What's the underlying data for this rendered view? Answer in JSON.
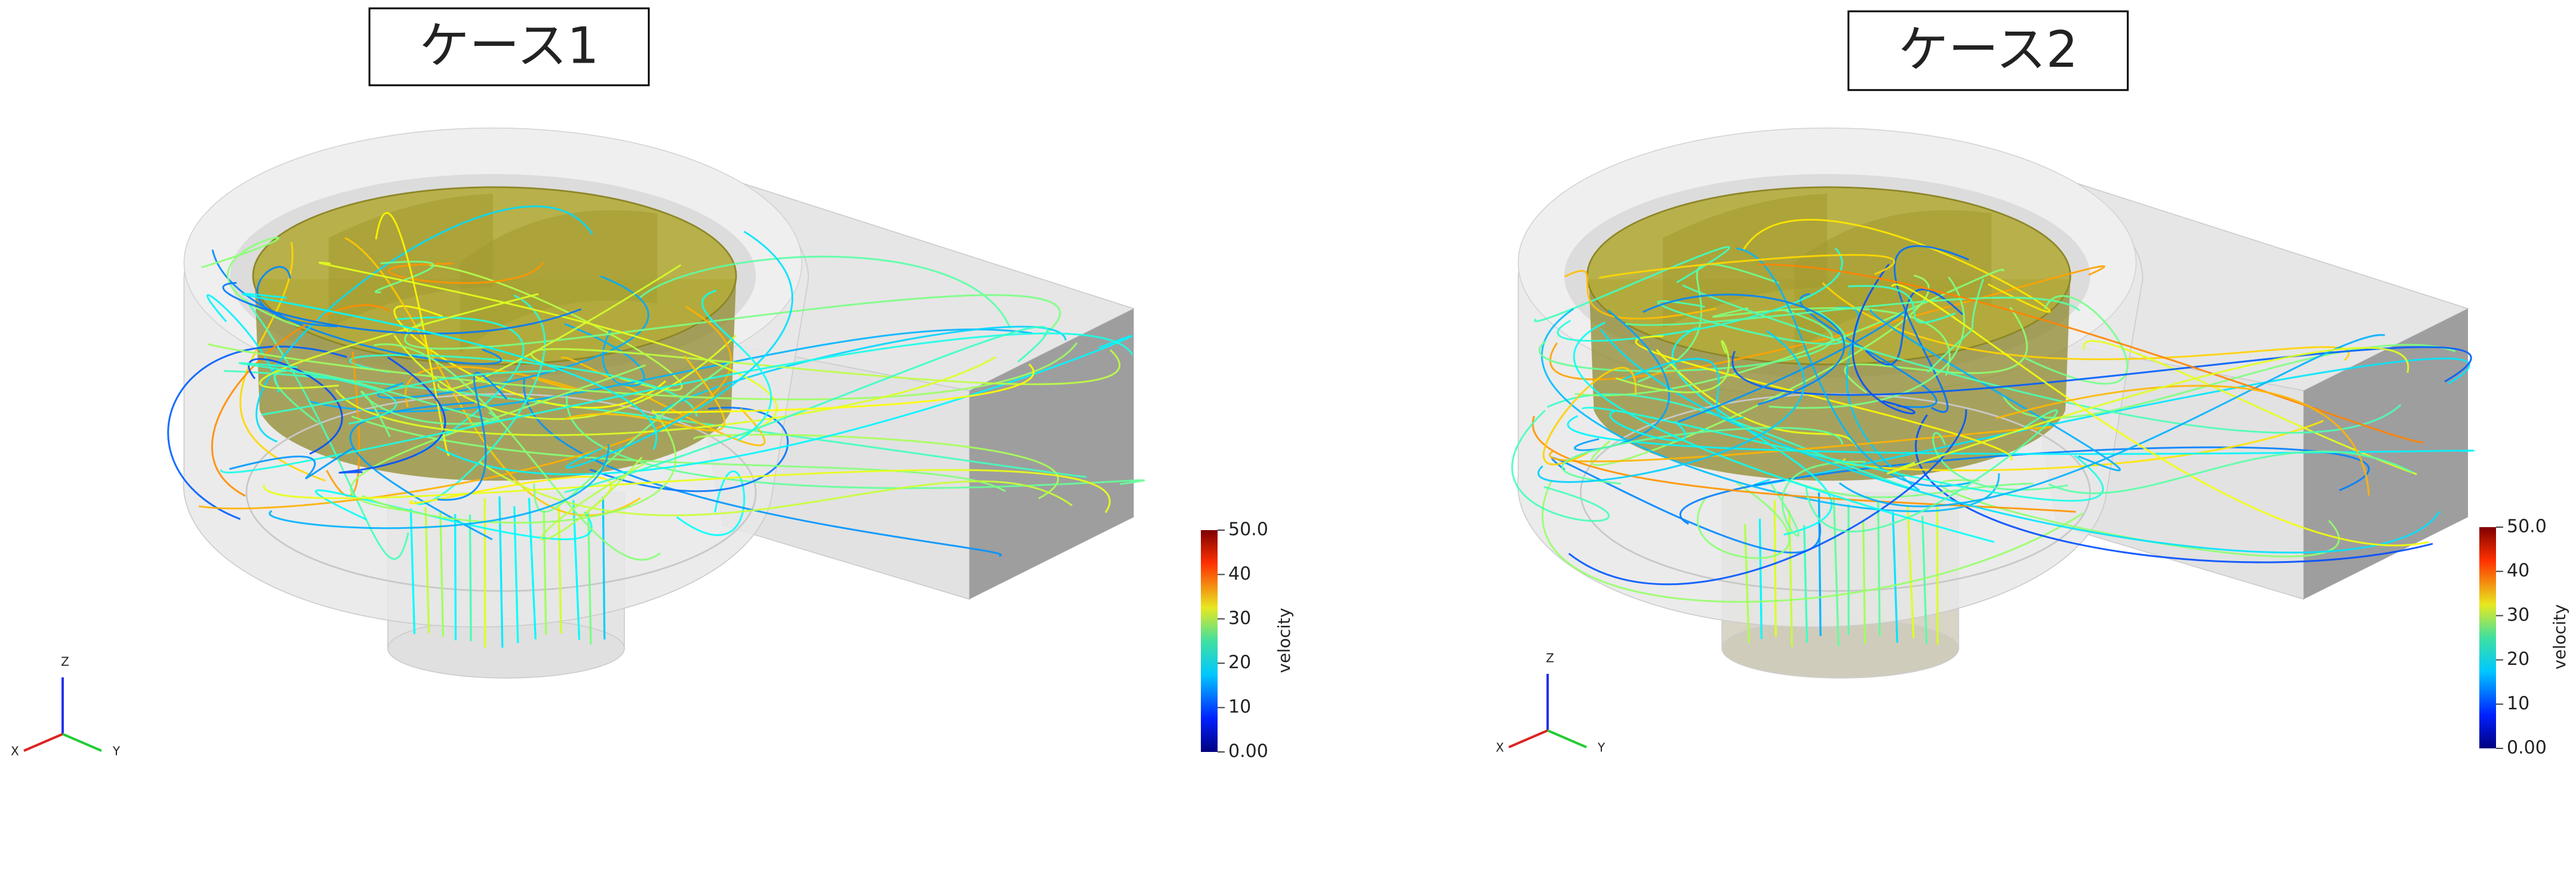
{
  "panels": [
    {
      "title": "ケース1",
      "colorbar": {
        "label": "velocity",
        "ticks": [
          {
            "value": 0,
            "label": "0.00"
          },
          10,
          20,
          30,
          40,
          {
            "value": 50,
            "label": "50.0"
          }
        ]
      },
      "axes": {
        "x": "X",
        "y": "Y",
        "z": "Z"
      }
    },
    {
      "title": "ケース2",
      "colorbar": {
        "label": "velocity",
        "ticks": [
          {
            "value": 0,
            "label": "0.00"
          },
          10,
          20,
          30,
          40,
          {
            "value": 50,
            "label": "50.0"
          }
        ]
      },
      "axes": {
        "x": "X",
        "y": "Y",
        "z": "Z"
      }
    }
  ]
}
